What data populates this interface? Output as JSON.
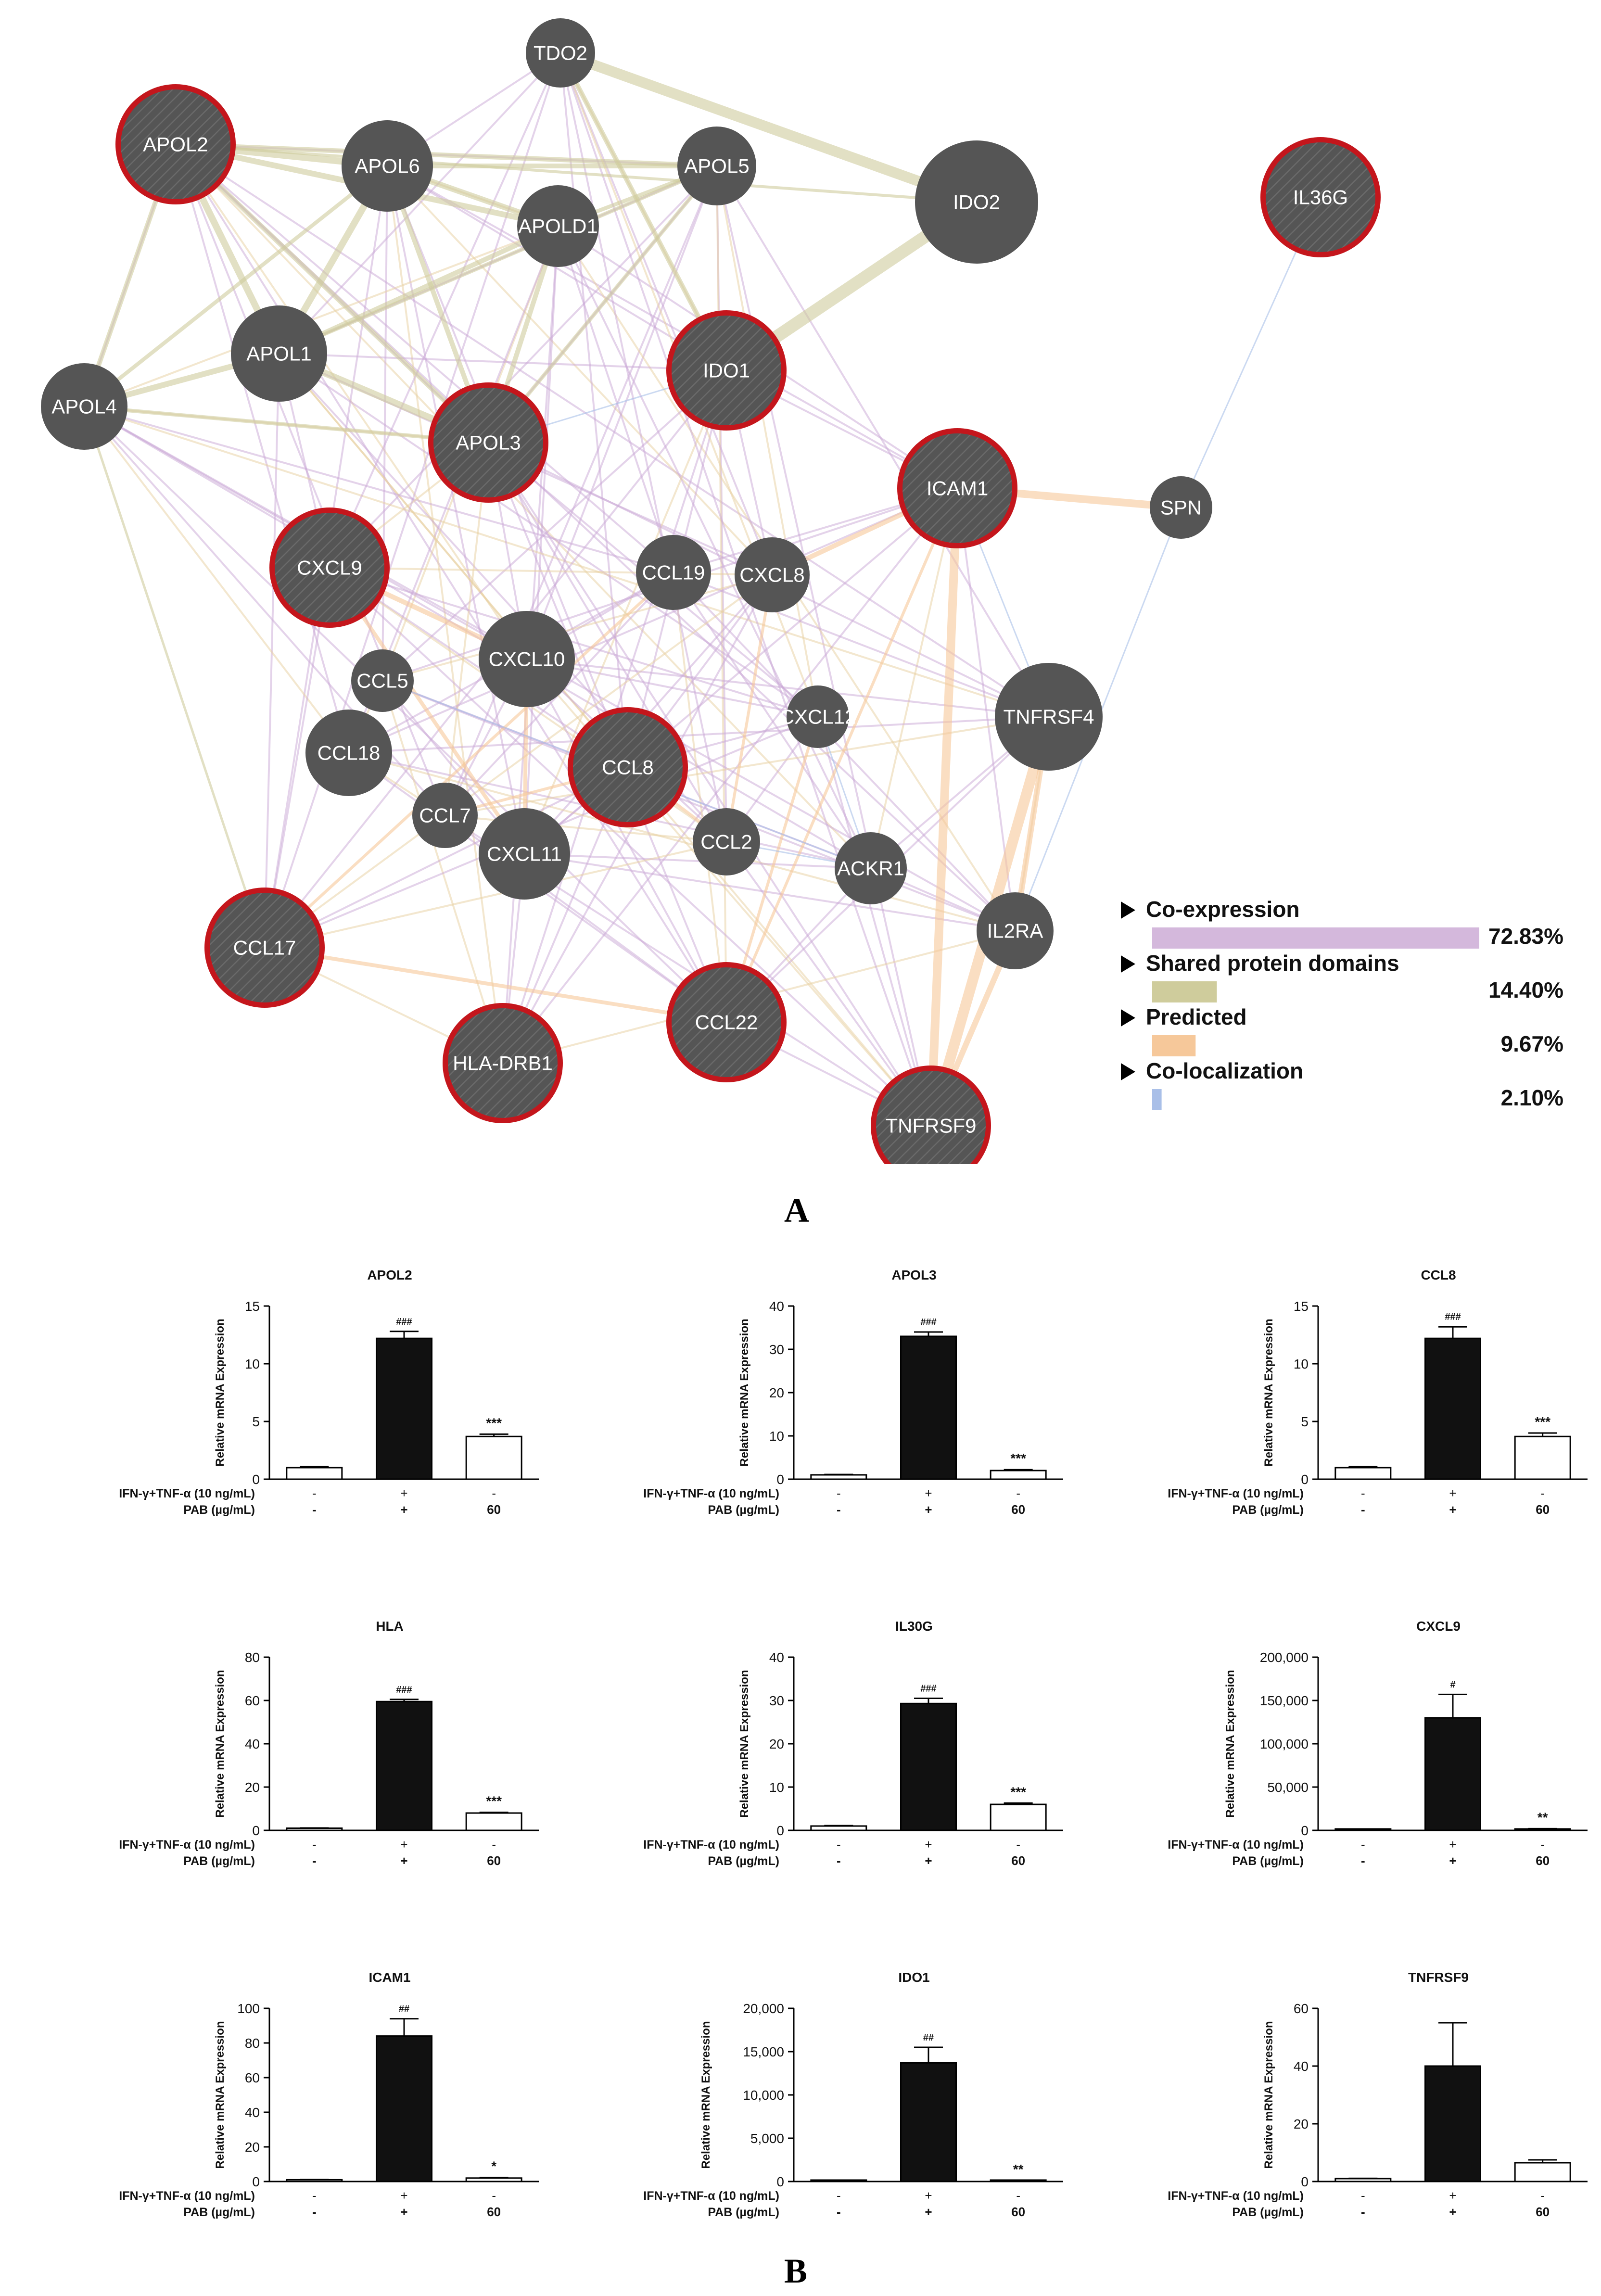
{
  "network": {
    "nodes": [
      {
        "id": "TDO2",
        "label": "TDO2",
        "query": false
      },
      {
        "id": "APOL2",
        "label": "APOL2",
        "query": true
      },
      {
        "id": "APOL6",
        "label": "APOL6",
        "query": false
      },
      {
        "id": "APOL5",
        "label": "APOL5",
        "query": false
      },
      {
        "id": "APOLD1",
        "label": "APOLD1",
        "query": false
      },
      {
        "id": "IDO2",
        "label": "IDO2",
        "query": false
      },
      {
        "id": "IL36G",
        "label": "IL36G",
        "query": true
      },
      {
        "id": "APOL1",
        "label": "APOL1",
        "query": false
      },
      {
        "id": "APOL4",
        "label": "APOL4",
        "query": false
      },
      {
        "id": "IDO1",
        "label": "IDO1",
        "query": true
      },
      {
        "id": "APOL3",
        "label": "APOL3",
        "query": true
      },
      {
        "id": "ICAM1",
        "label": "ICAM1",
        "query": true
      },
      {
        "id": "SPN",
        "label": "SPN",
        "query": false
      },
      {
        "id": "CXCL9",
        "label": "CXCL9",
        "query": true
      },
      {
        "id": "CCL19",
        "label": "CCL19",
        "query": false
      },
      {
        "id": "CXCL8",
        "label": "CXCL8",
        "query": false
      },
      {
        "id": "CXCL10",
        "label": "CXCL10",
        "query": false
      },
      {
        "id": "CCL5",
        "label": "CCL5",
        "query": false
      },
      {
        "id": "TNFRSF4",
        "label": "TNFRSF4",
        "query": false
      },
      {
        "id": "CXCL12",
        "label": "CXCL12",
        "query": false
      },
      {
        "id": "CCL18",
        "label": "CCL18",
        "query": false
      },
      {
        "id": "CCL8",
        "label": "CCL8",
        "query": true
      },
      {
        "id": "CCL7",
        "label": "CCL7",
        "query": false
      },
      {
        "id": "CXCL11",
        "label": "CXCL11",
        "query": false
      },
      {
        "id": "CCL2",
        "label": "CCL2",
        "query": false
      },
      {
        "id": "ACKR1",
        "label": "ACKR1",
        "query": false
      },
      {
        "id": "IL2RA",
        "label": "IL2RA",
        "query": false
      },
      {
        "id": "CCL17",
        "label": "CCL17",
        "query": true
      },
      {
        "id": "CCL22",
        "label": "CCL22",
        "query": true
      },
      {
        "id": "HLA-DRB1",
        "label": "HLA-DRB1",
        "query": true
      },
      {
        "id": "TNFRSF9",
        "label": "TNFRSF9",
        "query": true
      }
    ],
    "legend": [
      {
        "label": "Co-expression",
        "percent": "72.83%",
        "color": "#d4b8dc",
        "weight": 72.83
      },
      {
        "label": "Shared protein domains",
        "percent": "14.40%",
        "color": "#cfcc9c",
        "weight": 14.4
      },
      {
        "label": "Predicted",
        "percent": "9.67%",
        "color": "#f6c89a",
        "weight": 9.67
      },
      {
        "label": "Co-localization",
        "percent": "2.10%",
        "color": "#a9bfe8",
        "weight": 2.1
      }
    ],
    "colors": {
      "node": "#555555",
      "ring": "#c4161c",
      "label": "#ffffff"
    }
  },
  "panel_labels": {
    "a": "A",
    "b": "B"
  },
  "chart_data": [
    {
      "type": "bar",
      "title": "APOL2",
      "ylabel": "Relative mRNA Expression",
      "ylim": [
        0,
        15
      ],
      "yticks": [
        "0",
        "5",
        "10",
        "15"
      ],
      "yticks_values": [
        0,
        5,
        10,
        15
      ],
      "values": [
        1.0,
        12.2,
        3.7
      ],
      "errors": [
        0.1,
        0.6,
        0.2
      ],
      "marks": [
        "",
        "###",
        "***"
      ]
    },
    {
      "type": "bar",
      "title": "APOL3",
      "ylabel": "Relative mRNA Expression",
      "ylim": [
        0,
        40
      ],
      "yticks": [
        "0",
        "10",
        "20",
        "30",
        "40"
      ],
      "yticks_values": [
        0,
        10,
        20,
        30,
        40
      ],
      "values": [
        1.0,
        33.0,
        2.0
      ],
      "errors": [
        0.1,
        1.0,
        0.2
      ],
      "marks": [
        "",
        "###",
        "***"
      ]
    },
    {
      "type": "bar",
      "title": "CCL8",
      "ylabel": "Relative mRNA Expression",
      "ylim": [
        0,
        15
      ],
      "yticks": [
        "0",
        "5",
        "10",
        "15"
      ],
      "yticks_values": [
        0,
        5,
        10,
        15
      ],
      "values": [
        1.0,
        12.2,
        3.7
      ],
      "errors": [
        0.1,
        1.0,
        0.3
      ],
      "marks": [
        "",
        "###",
        "***"
      ]
    },
    {
      "type": "bar",
      "title": "HLA",
      "ylabel": "Relative mRNA Expression",
      "ylim": [
        0,
        80
      ],
      "yticks": [
        "0",
        "20",
        "40",
        "60",
        "80"
      ],
      "yticks_values": [
        0,
        20,
        40,
        60,
        80
      ],
      "values": [
        1.0,
        59.5,
        8.0
      ],
      "errors": [
        0.1,
        1.0,
        0.3
      ],
      "marks": [
        "",
        "###",
        "***"
      ]
    },
    {
      "type": "bar",
      "title": "IL30G",
      "ylabel": "Relative mRNA Expression",
      "ylim": [
        0,
        40
      ],
      "yticks": [
        "0",
        "10",
        "20",
        "30",
        "40"
      ],
      "yticks_values": [
        0,
        10,
        20,
        30,
        40
      ],
      "values": [
        1.0,
        29.3,
        6.0
      ],
      "errors": [
        0.1,
        1.2,
        0.3
      ],
      "marks": [
        "",
        "###",
        "***"
      ]
    },
    {
      "type": "bar",
      "title": "CXCL9",
      "ylabel": "Relative mRNA Expression",
      "ylim": [
        0,
        200000
      ],
      "yticks": [
        "0",
        "50,000",
        "100,000",
        "150,000",
        "200,000"
      ],
      "yticks_values": [
        0,
        50000,
        100000,
        150000,
        200000
      ],
      "values": [
        1,
        130000,
        1500
      ],
      "errors": [
        0,
        27000,
        500
      ],
      "marks": [
        "",
        "#",
        "**"
      ]
    },
    {
      "type": "bar",
      "title": "ICAM1",
      "ylabel": "Relative mRNA Expression",
      "ylim": [
        0,
        100
      ],
      "yticks": [
        "0",
        "20",
        "40",
        "60",
        "80",
        "100"
      ],
      "yticks_values": [
        0,
        20,
        40,
        60,
        80,
        100
      ],
      "values": [
        1.0,
        84.0,
        2.0
      ],
      "errors": [
        0.1,
        10.0,
        0.3
      ],
      "marks": [
        "",
        "##",
        "*"
      ]
    },
    {
      "type": "bar",
      "title": "IDO1",
      "ylabel": "Relative mRNA Expression",
      "ylim": [
        0,
        20000
      ],
      "yticks": [
        "0",
        "5,000",
        "10,000",
        "15,000",
        "20,000"
      ],
      "yticks_values": [
        0,
        5000,
        10000,
        15000,
        20000
      ],
      "values": [
        1,
        13700,
        80
      ],
      "errors": [
        0,
        1800,
        30
      ],
      "marks": [
        "",
        "##",
        "**"
      ]
    },
    {
      "type": "bar",
      "title": "TNFRSF9",
      "ylabel": "Relative mRNA Expression",
      "ylim": [
        0,
        60
      ],
      "yticks": [
        "0",
        "20",
        "40",
        "60"
      ],
      "yticks_values": [
        0,
        20,
        40,
        60
      ],
      "values": [
        1.0,
        40.0,
        6.5
      ],
      "errors": [
        0.1,
        15.0,
        1.0
      ],
      "marks": [
        "",
        "",
        ""
      ]
    }
  ],
  "conditions": {
    "row1_label": "IFN-γ+TNF-α  (10 ng/mL)",
    "row2_label": "PAB (µg/mL)",
    "row1_values": [
      "-",
      "+",
      "-"
    ],
    "row2_values": [
      "-",
      "+",
      "60"
    ]
  }
}
